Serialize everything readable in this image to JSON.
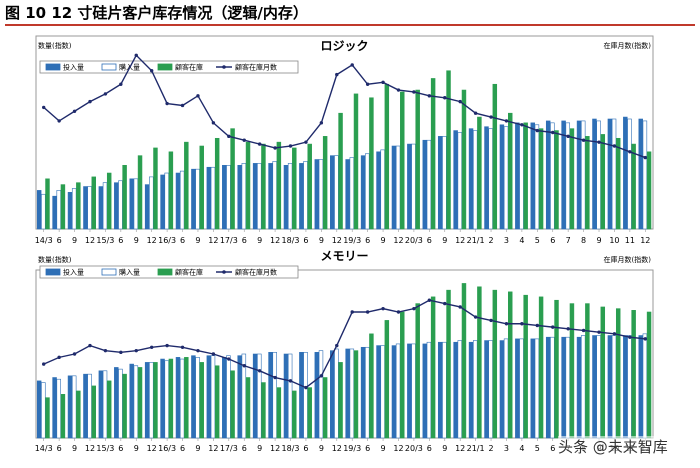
{
  "figure_title": "图 10 12 寸硅片客户库存情况（逻辑/内存）",
  "watermark": {
    "text": "头条 @未来智库"
  },
  "colors": {
    "investment": "#2e6fb6",
    "purchase": "#ffffff",
    "purchase_border": "#2e6fb6",
    "inventory": "#2a9e50",
    "months": "#1f2a6b",
    "title_rule": "#c0392b"
  },
  "chart_data": [
    {
      "type": "bar",
      "title": "ロジック",
      "ylabel_left": "数量(指数)",
      "ylabel_right": "在庫月数(指数)",
      "legend_labels": [
        "投入量",
        "購入量",
        "顧客在庫",
        "顧客在庫月数"
      ],
      "x_tick_labels": [
        "14/3",
        "6",
        "9",
        "12",
        "15/3",
        "6",
        "9",
        "12",
        "16/3",
        "6",
        "9",
        "12",
        "17/3",
        "6",
        "9",
        "12",
        "18/3",
        "6",
        "9",
        "12",
        "19/3",
        "6",
        "9",
        "12",
        "20/3",
        "6",
        "9",
        "12",
        "21/1",
        "2",
        "3",
        "4",
        "5",
        "6",
        "7",
        "8",
        "9",
        "10",
        "11",
        "12"
      ],
      "ylim": [
        0,
        100
      ],
      "y2lim": [
        0,
        100
      ],
      "series": [
        {
          "name": "投入量",
          "values": [
            20,
            17,
            19,
            22,
            22,
            24,
            26,
            23,
            28,
            29,
            31,
            32,
            33,
            33,
            34,
            34,
            33,
            34,
            36,
            38,
            36,
            38,
            40,
            43,
            44,
            46,
            48,
            51,
            52,
            53,
            54,
            55,
            55,
            56,
            56,
            56,
            57,
            57,
            58,
            57
          ]
        },
        {
          "name": "購入量",
          "values": [
            18,
            20,
            21,
            22,
            24,
            25,
            26,
            27,
            29,
            30,
            31,
            32,
            33,
            34,
            34,
            35,
            34,
            35,
            36,
            38,
            37,
            39,
            41,
            43,
            44,
            46,
            48,
            50,
            51,
            52,
            53,
            54,
            54,
            55,
            55,
            56,
            56,
            57,
            57,
            56
          ]
        },
        {
          "name": "顧客在庫",
          "values": [
            26,
            23,
            24,
            27,
            29,
            33,
            38,
            42,
            40,
            45,
            43,
            47,
            52,
            45,
            44,
            45,
            42,
            44,
            48,
            60,
            70,
            68,
            75,
            71,
            72,
            78,
            82,
            72,
            58,
            75,
            60,
            55,
            52,
            51,
            52,
            48,
            49,
            47,
            44,
            40
          ]
        },
        {
          "name": "顧客在庫月数",
          "values": [
            63,
            56,
            61,
            66,
            70,
            75,
            90,
            82,
            65,
            64,
            69,
            55,
            48,
            46,
            44,
            42,
            43,
            45,
            55,
            80,
            85,
            75,
            76,
            72,
            71,
            69,
            68,
            66,
            60,
            58,
            56,
            54,
            51,
            50,
            48,
            46,
            45,
            43,
            40,
            37
          ]
        }
      ]
    },
    {
      "type": "bar",
      "title": "メモリー",
      "ylabel_left": "数量(指数)",
      "ylabel_right": "在庫月数(指数)",
      "legend_labels": [
        "投入量",
        "購入量",
        "顧客在庫",
        "顧客在庫月数"
      ],
      "x_tick_labels": [
        "14/3",
        "6",
        "9",
        "12",
        "15/3",
        "6",
        "9",
        "12",
        "16/3",
        "6",
        "9",
        "12",
        "17/3",
        "6",
        "9",
        "12",
        "18/3",
        "6",
        "9",
        "12",
        "19/3",
        "6",
        "9",
        "12",
        "20/3",
        "6",
        "9",
        "12",
        "21/1",
        "2",
        "3",
        "4",
        "5",
        "6",
        "7",
        "8",
        "9",
        "10",
        "11",
        "12"
      ],
      "ylim": [
        0,
        100
      ],
      "y2lim": [
        0,
        100
      ],
      "series": [
        {
          "name": "投入量",
          "values": [
            34,
            36,
            37,
            38,
            40,
            42,
            44,
            45,
            47,
            48,
            49,
            49,
            48,
            49,
            50,
            51,
            50,
            51,
            51,
            52,
            53,
            54,
            55,
            55,
            56,
            56,
            57,
            57,
            57,
            58,
            58,
            59,
            59,
            60,
            60,
            60,
            61,
            61,
            61,
            61
          ]
        },
        {
          "name": "購入量",
          "values": [
            33,
            35,
            37,
            38,
            40,
            41,
            43,
            45,
            46,
            47,
            48,
            49,
            49,
            50,
            50,
            51,
            50,
            51,
            52,
            53,
            53,
            54,
            55,
            56,
            56,
            57,
            57,
            58,
            58,
            58,
            59,
            59,
            59,
            60,
            60,
            61,
            61,
            61,
            61,
            62
          ]
        },
        {
          "name": "顧客在庫",
          "values": [
            24,
            26,
            28,
            31,
            34,
            38,
            42,
            45,
            47,
            48,
            45,
            43,
            40,
            36,
            33,
            30,
            28,
            30,
            36,
            45,
            52,
            62,
            70,
            75,
            80,
            84,
            88,
            92,
            90,
            88,
            87,
            85,
            84,
            82,
            80,
            80,
            78,
            77,
            76,
            75
          ]
        },
        {
          "name": "顧客在庫月数",
          "values": [
            44,
            48,
            50,
            55,
            52,
            51,
            52,
            54,
            55,
            54,
            52,
            50,
            47,
            43,
            40,
            36,
            34,
            30,
            37,
            55,
            75,
            75,
            77,
            75,
            77,
            82,
            80,
            78,
            72,
            70,
            68,
            68,
            67,
            66,
            65,
            64,
            63,
            62,
            60,
            59
          ]
        }
      ]
    }
  ]
}
